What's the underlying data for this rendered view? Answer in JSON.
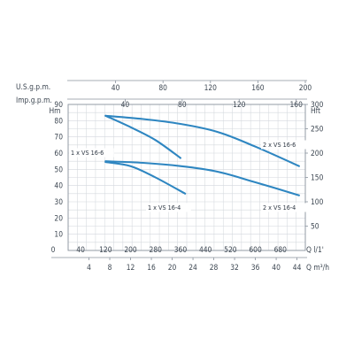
{
  "chart_data": {
    "type": "line",
    "grid": true,
    "axes": {
      "left": {
        "label": "Hm",
        "ticks": [
          "10",
          "20",
          "30",
          "40",
          "50",
          "60",
          "70",
          "80",
          "90"
        ],
        "range": [
          0,
          90
        ]
      },
      "right": {
        "label": "Hft",
        "ticks": [
          "50",
          "100",
          "150",
          "200",
          "250",
          "300"
        ],
        "range": [
          0,
          300
        ]
      },
      "top_us": {
        "label": "U.S.g.p.m.",
        "ticks": [
          "40",
          "80",
          "120",
          "160",
          "200"
        ],
        "range": [
          0,
          200
        ]
      },
      "top_imp": {
        "label": "Imp.g.p.m.",
        "ticks": [
          "40",
          "80",
          "120",
          "160"
        ],
        "range": [
          0,
          166.4
        ]
      },
      "bottom_lmin": {
        "label": "Q l/1'",
        "ticks": [
          "0",
          "40",
          "120",
          "200",
          "280",
          "360",
          "440",
          "520",
          "600",
          "680"
        ],
        "range": [
          0,
          760
        ]
      },
      "bottom_m3h": {
        "label": "Q m³/h",
        "ticks": [
          "4",
          "8",
          "12",
          "16",
          "20",
          "24",
          "28",
          "32",
          "36",
          "40",
          "44"
        ],
        "range": [
          0,
          45.6
        ]
      }
    },
    "x_unit": "l/min",
    "y_unit": "m",
    "series": [
      {
        "name": "1 x VS 16-6",
        "points": [
          [
            120,
            83
          ],
          [
            200,
            76
          ],
          [
            280,
            68
          ],
          [
            360,
            57
          ]
        ]
      },
      {
        "name": "2 x VS 16-6",
        "points": [
          [
            120,
            83
          ],
          [
            240,
            81
          ],
          [
            360,
            78
          ],
          [
            480,
            73
          ],
          [
            600,
            64
          ],
          [
            740,
            52
          ]
        ]
      },
      {
        "name": "1 x VS 16-4",
        "points": [
          [
            120,
            54.5
          ],
          [
            200,
            52
          ],
          [
            280,
            45
          ],
          [
            375,
            35
          ]
        ]
      },
      {
        "name": "2 x VS 16-4",
        "points": [
          [
            120,
            55
          ],
          [
            240,
            54
          ],
          [
            360,
            52
          ],
          [
            480,
            48.5
          ],
          [
            600,
            42
          ],
          [
            740,
            34
          ]
        ]
      }
    ],
    "series_labels": [
      "1 x VS 16-6",
      "2 x VS 16-6",
      "1 x VS 16-4",
      "2 x VS 16-4"
    ],
    "line_color": "#2e86c1"
  }
}
